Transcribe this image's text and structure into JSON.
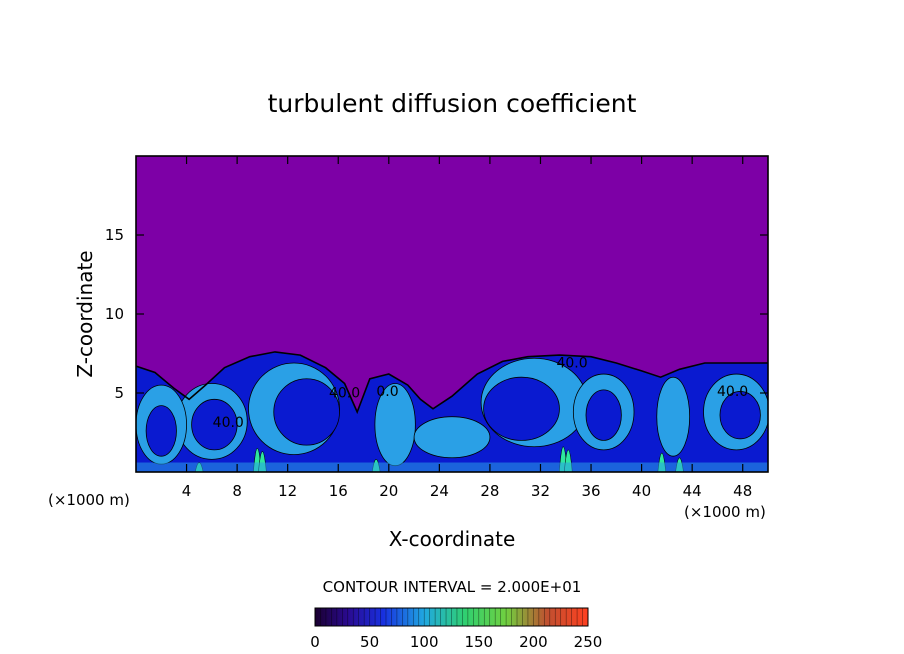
{
  "chart_data": {
    "type": "heatmap",
    "title": "turbulent diffusion coefficient",
    "xlabel": "X-coordinate",
    "ylabel": "Z-coordinate",
    "x_unit_left": "(×1000 m)",
    "x_unit_right": "(×1000 m)",
    "xlim": [
      0,
      50
    ],
    "ylim": [
      0,
      20
    ],
    "x_ticks": [
      4,
      8,
      12,
      16,
      20,
      24,
      28,
      32,
      36,
      40,
      44,
      48
    ],
    "y_ticks": [
      5,
      10,
      15
    ],
    "contour_interval_text": "CONTOUR INTERVAL =  2.000E+01",
    "contour_labels": [
      {
        "x": 7.3,
        "z": 2.85,
        "text": "40.0"
      },
      {
        "x": 16.5,
        "z": 4.7,
        "text": "40.0"
      },
      {
        "x": 19.9,
        "z": 4.8,
        "text": "0.0"
      },
      {
        "x": 34.5,
        "z": 6.6,
        "text": "40.0"
      },
      {
        "x": 47.2,
        "z": 4.8,
        "text": "40.0"
      }
    ],
    "boundary_layer_top": [
      [
        0,
        6.7
      ],
      [
        1.5,
        6.3
      ],
      [
        3,
        5.3
      ],
      [
        4.2,
        4.6
      ],
      [
        5.5,
        5.5
      ],
      [
        7,
        6.6
      ],
      [
        9,
        7.3
      ],
      [
        11,
        7.6
      ],
      [
        13,
        7.4
      ],
      [
        15,
        6.6
      ],
      [
        16.5,
        5.6
      ],
      [
        17.5,
        3.8
      ],
      [
        18.5,
        5.9
      ],
      [
        20,
        6.2
      ],
      [
        21.5,
        5.5
      ],
      [
        22.5,
        4.6
      ],
      [
        23.5,
        4.0
      ],
      [
        25,
        4.8
      ],
      [
        27,
        6.2
      ],
      [
        29,
        7.0
      ],
      [
        31,
        7.3
      ],
      [
        33.5,
        7.4
      ],
      [
        36,
        7.3
      ],
      [
        38,
        6.9
      ],
      [
        40,
        6.4
      ],
      [
        41.5,
        6.0
      ],
      [
        43,
        6.5
      ],
      [
        45,
        6.9
      ],
      [
        47,
        6.9
      ],
      [
        50,
        6.9
      ]
    ],
    "colorbar": {
      "min": 0,
      "max": 250,
      "ticks": [
        0,
        50,
        100,
        150,
        200,
        250
      ]
    },
    "colors": {
      "background_field": "#7d00a6",
      "low_values": "#0a1ad0",
      "mid_values": "#2aa0e6",
      "high_values": "#2ee6a0"
    }
  }
}
